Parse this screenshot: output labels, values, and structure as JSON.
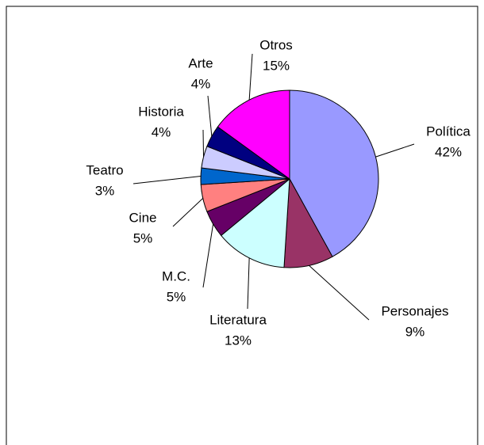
{
  "chart_data": {
    "type": "pie",
    "categories": [
      "Política",
      "Personajes",
      "Literatura",
      "M.C.",
      "Cine",
      "Teatro",
      "Historia",
      "Arte",
      "Otros"
    ],
    "values": [
      42,
      9,
      13,
      5,
      5,
      3,
      4,
      4,
      15
    ],
    "value_labels": [
      "42%",
      "9%",
      "13%",
      "5%",
      "5%",
      "3%",
      "4%",
      "4%",
      "15%"
    ],
    "colors": [
      "#9999ff",
      "#993366",
      "#ccffff",
      "#660066",
      "#ff8080",
      "#0066cc",
      "#ccccff",
      "#000080",
      "#ff00ff"
    ]
  }
}
